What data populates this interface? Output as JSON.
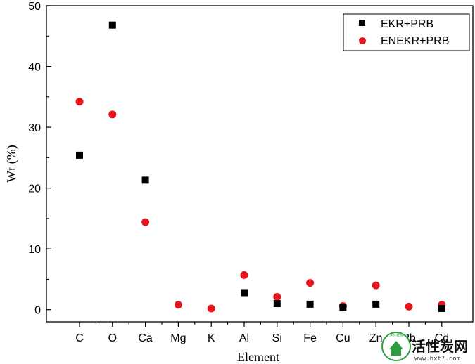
{
  "chart_data": {
    "type": "scatter",
    "xlabel": "Element",
    "ylabel": "Wt (%)",
    "ylim": [
      -2,
      50
    ],
    "yticks": [
      "0",
      "10",
      "20",
      "30",
      "40",
      "50"
    ],
    "categories": [
      "C",
      "O",
      "Ca",
      "Mg",
      "K",
      "Al",
      "Si",
      "Fe",
      "Cu",
      "Zn",
      "Pb",
      "Cd"
    ],
    "grid": false,
    "legend_position": "top-right",
    "series": [
      {
        "name": "EKR+PRB",
        "marker": "square",
        "color": "#000000",
        "values": [
          25.4,
          46.8,
          21.3,
          null,
          null,
          2.8,
          1.0,
          0.9,
          0.4,
          0.9,
          null,
          0.2
        ]
      },
      {
        "name": "ENEKR+PRB",
        "marker": "circle",
        "color": "#e8141c",
        "values": [
          34.2,
          32.1,
          14.4,
          0.8,
          0.2,
          5.7,
          2.1,
          4.4,
          0.6,
          4.0,
          0.5,
          0.8
        ]
      }
    ]
  },
  "watermark": {
    "text": "活性炭网",
    "url": "www.hxt7.com"
  }
}
